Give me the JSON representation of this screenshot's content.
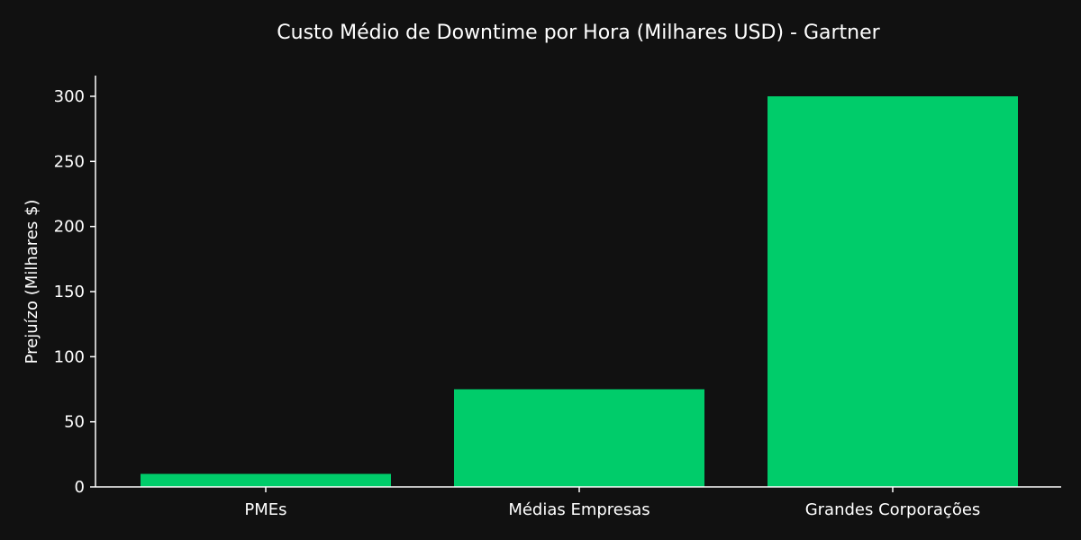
{
  "chart_data": {
    "type": "bar",
    "title": "Custo Médio de Downtime por Hora (Milhares USD) - Gartner",
    "xlabel": "",
    "ylabel": "Prejuízo (Milhares $)",
    "categories": [
      "PMEs",
      "Médias Empresas",
      "Grandes Corporações"
    ],
    "values": [
      10,
      75,
      300
    ],
    "ylim": [
      0,
      315
    ],
    "yticks": [
      0,
      50,
      100,
      150,
      200,
      250,
      300
    ],
    "grid": false,
    "bar_color": "#00CC6A",
    "background_color": "#111111",
    "text_color": "#FFFFFF",
    "axis_color": "#FFFFFF"
  }
}
